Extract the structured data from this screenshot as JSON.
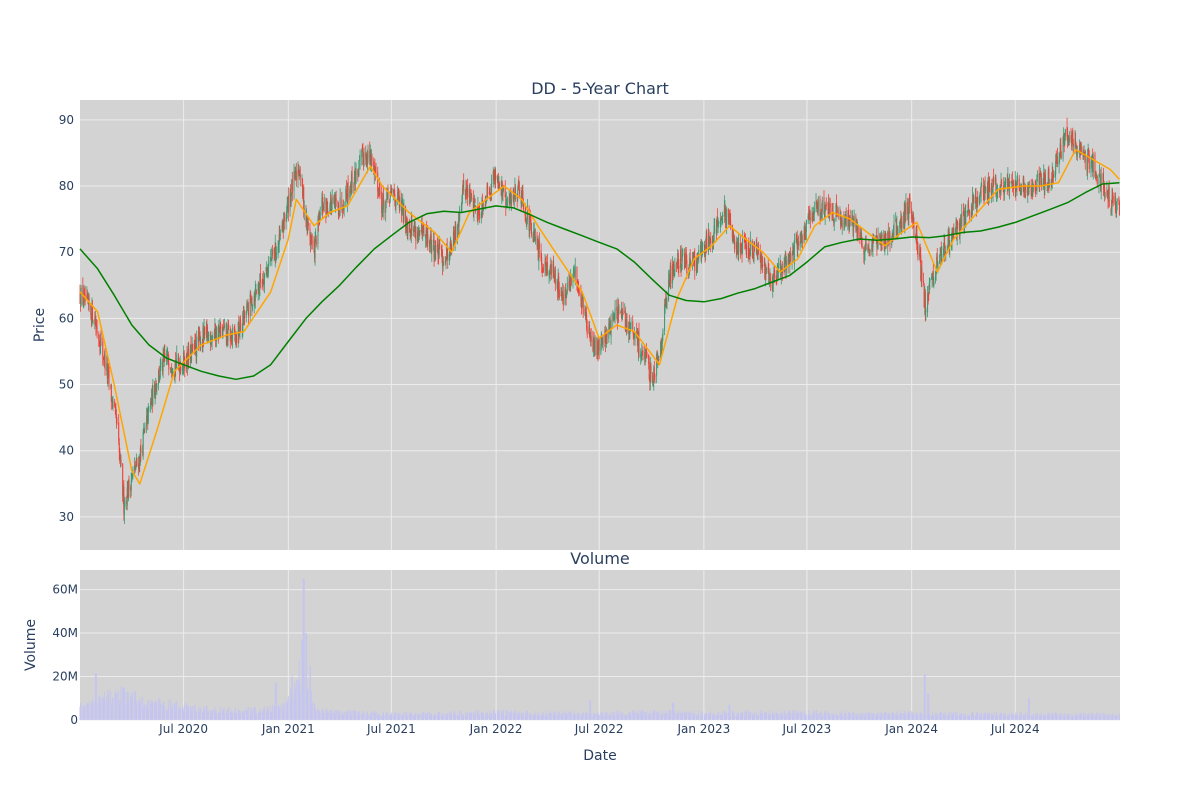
{
  "colors": {
    "panel_bg": "#d3d3d3",
    "grid": "#ececec",
    "candle_up": "#3d9970",
    "candle_down": "#ef4136",
    "ma_fast": "#ffa500",
    "ma_slow": "#008000",
    "volume_bar": "#c5c5f0",
    "text": "#2a3f5f"
  },
  "chart_data": [
    {
      "type": "candlestick",
      "title": "DD - 5-Year Chart",
      "ylabel": "Price",
      "ylim": [
        25,
        93
      ],
      "y_ticks": [
        30,
        40,
        50,
        60,
        70,
        80,
        90
      ],
      "x_range": [
        "2020-01-01",
        "2025-01-01"
      ],
      "grid": true,
      "price_path": [
        [
          "2020-01-01",
          63.5
        ],
        [
          "2020-01-25",
          60.5
        ],
        [
          "2020-02-15",
          53
        ],
        [
          "2020-03-05",
          44
        ],
        [
          "2020-03-18",
          32
        ],
        [
          "2020-04-01",
          36
        ],
        [
          "2020-04-15",
          39
        ],
        [
          "2020-05-01",
          46
        ],
        [
          "2020-05-15",
          51
        ],
        [
          "2020-06-01",
          54
        ],
        [
          "2020-06-20",
          53
        ],
        [
          "2020-07-10",
          54
        ],
        [
          "2020-08-01",
          57
        ],
        [
          "2020-09-01",
          58
        ],
        [
          "2020-10-01",
          57
        ],
        [
          "2020-10-20",
          61
        ],
        [
          "2020-11-15",
          66
        ],
        [
          "2020-12-15",
          71
        ],
        [
          "2021-01-05",
          79
        ],
        [
          "2021-01-20",
          83
        ],
        [
          "2021-02-01",
          75
        ],
        [
          "2021-02-15",
          70
        ],
        [
          "2021-03-01",
          77
        ],
        [
          "2021-04-01",
          77
        ],
        [
          "2021-05-01",
          82
        ],
        [
          "2021-05-15",
          85
        ],
        [
          "2021-06-01",
          83
        ],
        [
          "2021-06-15",
          77
        ],
        [
          "2021-07-05",
          79
        ],
        [
          "2021-08-01",
          74
        ],
        [
          "2021-09-01",
          72
        ],
        [
          "2021-10-01",
          69
        ],
        [
          "2021-10-20",
          72
        ],
        [
          "2021-11-05",
          80
        ],
        [
          "2021-12-01",
          76
        ],
        [
          "2022-01-01",
          82
        ],
        [
          "2022-01-20",
          77
        ],
        [
          "2022-02-10",
          80
        ],
        [
          "2022-03-01",
          74
        ],
        [
          "2022-03-20",
          69
        ],
        [
          "2022-04-10",
          67
        ],
        [
          "2022-05-01",
          63
        ],
        [
          "2022-05-20",
          67
        ],
        [
          "2022-06-05",
          61
        ],
        [
          "2022-06-20",
          55
        ],
        [
          "2022-07-10",
          57
        ],
        [
          "2022-08-01",
          61
        ],
        [
          "2022-08-20",
          59
        ],
        [
          "2022-09-15",
          55
        ],
        [
          "2022-10-01",
          51
        ],
        [
          "2022-10-15",
          55
        ],
        [
          "2022-11-01",
          66
        ],
        [
          "2022-11-15",
          69
        ],
        [
          "2022-12-15",
          68
        ],
        [
          "2023-01-15",
          73
        ],
        [
          "2023-02-05",
          76
        ],
        [
          "2023-03-01",
          71
        ],
        [
          "2023-04-01",
          70
        ],
        [
          "2023-05-01",
          66
        ],
        [
          "2023-06-01",
          69
        ],
        [
          "2023-06-20",
          72
        ],
        [
          "2023-07-20",
          77
        ],
        [
          "2023-08-15",
          76
        ],
        [
          "2023-09-15",
          75
        ],
        [
          "2023-10-10",
          71
        ],
        [
          "2023-11-01",
          71
        ],
        [
          "2023-12-01",
          73
        ],
        [
          "2023-12-28",
          77
        ],
        [
          "2024-01-10",
          72
        ],
        [
          "2024-01-25",
          62
        ],
        [
          "2024-02-10",
          67
        ],
        [
          "2024-03-01",
          71
        ],
        [
          "2024-04-01",
          75
        ],
        [
          "2024-05-01",
          79
        ],
        [
          "2024-06-01",
          80
        ],
        [
          "2024-07-01",
          80
        ],
        [
          "2024-08-01",
          80
        ],
        [
          "2024-09-01",
          81
        ],
        [
          "2024-10-01",
          88
        ],
        [
          "2024-10-20",
          85
        ],
        [
          "2024-11-15",
          83
        ],
        [
          "2024-12-15",
          78
        ],
        [
          "2024-12-31",
          76.5
        ]
      ],
      "series": [
        {
          "line_color": "#ffa500",
          "points": [
            [
              "2020-01-01",
              64
            ],
            [
              "2020-02-01",
              61
            ],
            [
              "2020-03-01",
              50
            ],
            [
              "2020-04-01",
              37
            ],
            [
              "2020-04-15",
              35
            ],
            [
              "2020-05-15",
              43
            ],
            [
              "2020-06-15",
              52
            ],
            [
              "2020-08-01",
              56
            ],
            [
              "2020-09-15",
              57.5
            ],
            [
              "2020-10-15",
              58
            ],
            [
              "2020-12-01",
              64
            ],
            [
              "2021-01-01",
              72
            ],
            [
              "2021-01-15",
              78
            ],
            [
              "2021-02-15",
              74
            ],
            [
              "2021-03-15",
              76
            ],
            [
              "2021-04-15",
              77
            ],
            [
              "2021-05-25",
              83
            ],
            [
              "2021-06-15",
              80
            ],
            [
              "2021-08-01",
              76
            ],
            [
              "2021-09-15",
              73
            ],
            [
              "2021-10-15",
              70
            ],
            [
              "2021-11-15",
              76
            ],
            [
              "2021-12-15",
              78
            ],
            [
              "2022-01-15",
              80
            ],
            [
              "2022-02-15",
              78
            ],
            [
              "2022-03-15",
              74
            ],
            [
              "2022-04-15",
              70
            ],
            [
              "2022-06-01",
              64
            ],
            [
              "2022-07-01",
              57
            ],
            [
              "2022-08-01",
              59
            ],
            [
              "2022-09-01",
              58
            ],
            [
              "2022-10-15",
              53
            ],
            [
              "2022-11-15",
              63
            ],
            [
              "2022-12-15",
              69
            ],
            [
              "2023-01-15",
              71
            ],
            [
              "2023-02-15",
              74
            ],
            [
              "2023-03-15",
              72
            ],
            [
              "2023-04-15",
              70
            ],
            [
              "2023-05-15",
              67
            ],
            [
              "2023-06-15",
              69
            ],
            [
              "2023-07-15",
              74
            ],
            [
              "2023-08-15",
              76
            ],
            [
              "2023-09-15",
              75
            ],
            [
              "2023-10-15",
              73
            ],
            [
              "2023-11-15",
              71
            ],
            [
              "2023-12-15",
              73
            ],
            [
              "2024-01-10",
              74.5
            ],
            [
              "2024-02-15",
              67
            ],
            [
              "2024-03-15",
              72
            ],
            [
              "2024-04-15",
              75
            ],
            [
              "2024-06-01",
              79.5
            ],
            [
              "2024-07-15",
              80
            ],
            [
              "2024-08-15",
              80
            ],
            [
              "2024-09-15",
              80.5
            ],
            [
              "2024-10-15",
              85.5
            ],
            [
              "2024-11-15",
              84
            ],
            [
              "2024-12-15",
              82.5
            ],
            [
              "2024-12-31",
              81
            ]
          ]
        },
        {
          "line_color": "#008000",
          "points": [
            [
              "2020-01-01",
              70.5
            ],
            [
              "2020-02-01",
              67.5
            ],
            [
              "2020-03-01",
              63.5
            ],
            [
              "2020-04-01",
              59
            ],
            [
              "2020-05-01",
              56
            ],
            [
              "2020-06-01",
              54
            ],
            [
              "2020-07-01",
              53
            ],
            [
              "2020-08-01",
              52
            ],
            [
              "2020-09-01",
              51.3
            ],
            [
              "2020-10-01",
              50.8
            ],
            [
              "2020-11-01",
              51.3
            ],
            [
              "2020-12-01",
              53
            ],
            [
              "2021-01-01",
              56.5
            ],
            [
              "2021-02-01",
              60
            ],
            [
              "2021-03-01",
              62.5
            ],
            [
              "2021-04-01",
              65
            ],
            [
              "2021-05-01",
              67.8
            ],
            [
              "2021-06-01",
              70.5
            ],
            [
              "2021-07-01",
              72.5
            ],
            [
              "2021-08-01",
              74.5
            ],
            [
              "2021-09-01",
              75.8
            ],
            [
              "2021-10-01",
              76.2
            ],
            [
              "2021-11-01",
              76
            ],
            [
              "2021-12-01",
              76.5
            ],
            [
              "2022-01-01",
              77
            ],
            [
              "2022-02-01",
              76.7
            ],
            [
              "2022-03-01",
              75.7
            ],
            [
              "2022-04-01",
              74.5
            ],
            [
              "2022-05-01",
              73.5
            ],
            [
              "2022-06-01",
              72.5
            ],
            [
              "2022-07-01",
              71.5
            ],
            [
              "2022-08-01",
              70.5
            ],
            [
              "2022-09-01",
              68.5
            ],
            [
              "2022-10-01",
              66
            ],
            [
              "2022-11-01",
              63.5
            ],
            [
              "2022-12-01",
              62.7
            ],
            [
              "2023-01-01",
              62.5
            ],
            [
              "2023-02-01",
              63
            ],
            [
              "2023-03-01",
              63.8
            ],
            [
              "2023-04-01",
              64.5
            ],
            [
              "2023-05-01",
              65.5
            ],
            [
              "2023-06-01",
              66.5
            ],
            [
              "2023-07-01",
              68.5
            ],
            [
              "2023-08-01",
              70.8
            ],
            [
              "2023-09-01",
              71.5
            ],
            [
              "2023-10-01",
              72
            ],
            [
              "2023-11-01",
              71.8
            ],
            [
              "2023-12-01",
              72
            ],
            [
              "2024-01-01",
              72.3
            ],
            [
              "2024-02-01",
              72.2
            ],
            [
              "2024-03-01",
              72.5
            ],
            [
              "2024-04-01",
              73
            ],
            [
              "2024-05-01",
              73.2
            ],
            [
              "2024-06-01",
              73.8
            ],
            [
              "2024-07-01",
              74.5
            ],
            [
              "2024-08-01",
              75.5
            ],
            [
              "2024-09-01",
              76.5
            ],
            [
              "2024-10-01",
              77.5
            ],
            [
              "2024-11-01",
              79
            ],
            [
              "2024-12-01",
              80.3
            ],
            [
              "2024-12-31",
              80.5
            ]
          ]
        }
      ]
    },
    {
      "type": "bar",
      "title": "Volume",
      "xlabel": "Date",
      "ylabel": "Volume",
      "ylim": [
        0,
        69000000
      ],
      "y_ticks": [
        {
          "value": 0,
          "label": "0"
        },
        {
          "value": 20000000,
          "label": "20M"
        },
        {
          "value": 40000000,
          "label": "40M"
        },
        {
          "value": 60000000,
          "label": "60M"
        }
      ],
      "x_range": [
        "2020-01-01",
        "2025-01-01"
      ],
      "x_ticks": [
        {
          "date": "2020-07-01",
          "label": "Jul 2020"
        },
        {
          "date": "2021-01-01",
          "label": "Jan 2021"
        },
        {
          "date": "2021-07-01",
          "label": "Jul 2021"
        },
        {
          "date": "2022-01-01",
          "label": "Jan 2022"
        },
        {
          "date": "2022-07-01",
          "label": "Jul 2022"
        },
        {
          "date": "2023-01-01",
          "label": "Jan 2023"
        },
        {
          "date": "2023-07-01",
          "label": "Jul 2023"
        },
        {
          "date": "2024-01-01",
          "label": "Jan 2024"
        },
        {
          "date": "2024-07-01",
          "label": "Jul 2024"
        }
      ],
      "volume_path": [
        [
          "2020-01-01",
          6000000
        ],
        [
          "2020-02-01",
          8000000
        ],
        [
          "2020-03-01",
          12000000
        ],
        [
          "2020-04-01",
          10000000
        ],
        [
          "2020-05-01",
          8000000
        ],
        [
          "2020-06-01",
          7000000
        ],
        [
          "2020-08-01",
          5000000
        ],
        [
          "2020-10-01",
          4000000
        ],
        [
          "2020-12-01",
          5000000
        ],
        [
          "2021-01-01",
          8000000
        ],
        [
          "2021-01-20",
          20000000
        ],
        [
          "2021-02-05",
          12000000
        ],
        [
          "2021-02-20",
          6000000
        ],
        [
          "2021-03-15",
          3500000
        ],
        [
          "2021-06-01",
          3000000
        ],
        [
          "2021-09-01",
          2800000
        ],
        [
          "2022-01-01",
          3500000
        ],
        [
          "2022-04-01",
          3000000
        ],
        [
          "2022-07-01",
          3000000
        ],
        [
          "2022-10-01",
          3500000
        ],
        [
          "2023-01-01",
          3000000
        ],
        [
          "2023-06-01",
          3500000
        ],
        [
          "2023-10-01",
          2800000
        ],
        [
          "2024-01-01",
          3000000
        ],
        [
          "2024-04-01",
          2800000
        ],
        [
          "2024-08-01",
          2600000
        ],
        [
          "2024-12-31",
          2500000
        ]
      ],
      "spikes": [
        [
          "2020-01-29",
          21500000
        ],
        [
          "2020-03-18",
          15000000
        ],
        [
          "2020-03-25",
          13000000
        ],
        [
          "2020-12-10",
          17000000
        ],
        [
          "2021-01-08",
          20000000
        ],
        [
          "2021-01-25",
          37000000
        ],
        [
          "2021-01-28",
          65000000
        ],
        [
          "2021-02-01",
          40000000
        ],
        [
          "2021-02-08",
          25000000
        ],
        [
          "2022-06-15",
          9000000
        ],
        [
          "2022-11-08",
          8000000
        ],
        [
          "2023-02-15",
          7000000
        ],
        [
          "2024-01-24",
          21000000
        ],
        [
          "2024-01-30",
          12000000
        ],
        [
          "2024-07-25",
          10000000
        ]
      ]
    }
  ]
}
